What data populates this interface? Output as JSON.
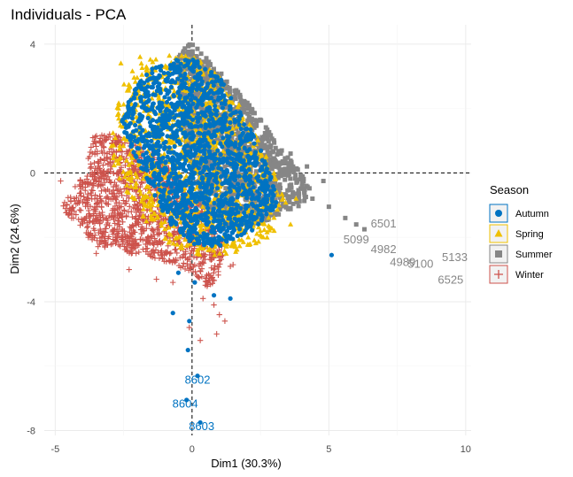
{
  "chart_data": {
    "type": "scatter",
    "title": "Individuals - PCA",
    "xlabel": "Dim1 (30.3%)",
    "ylabel": "Dim2 (24.6%)",
    "xlim": [
      -5.4,
      10.2
    ],
    "ylim": [
      -8.15,
      4.6
    ],
    "xticks": [
      -5,
      0,
      5,
      10
    ],
    "yticks": [
      4,
      0,
      -4,
      -8
    ],
    "grid": true,
    "reference_lines": {
      "x": 0,
      "y": 0,
      "style": "dashed"
    },
    "legend": {
      "title": "Season",
      "position": "right"
    },
    "series": [
      {
        "name": "Autumn",
        "color": "#0073C2",
        "shape": "circle",
        "cloud": [
          [
            -2.4,
            2.2
          ],
          [
            -1.6,
            3.2
          ],
          [
            -0.9,
            3.5
          ],
          [
            0,
            3.6
          ],
          [
            1,
            3.0
          ],
          [
            2,
            1.6
          ],
          [
            2.8,
            0.2
          ],
          [
            3.2,
            -0.9
          ],
          [
            2.4,
            -1.7
          ],
          [
            1.2,
            -2.3
          ],
          [
            0,
            -2.2
          ],
          [
            -0.8,
            -1.6
          ],
          [
            -1.4,
            -0.7
          ],
          [
            -2.0,
            0.4
          ],
          [
            -2.6,
            1.5
          ]
        ],
        "points": [
          [
            5.1,
            -2.55
          ],
          [
            -0.5,
            -3.1
          ],
          [
            0.1,
            -3.4
          ],
          [
            0.8,
            -3.8
          ],
          [
            1.4,
            -3.9
          ],
          [
            -0.7,
            -4.35
          ],
          [
            -0.1,
            -4.6
          ],
          [
            -0.15,
            -5.5
          ],
          [
            0.2,
            -6.3
          ],
          [
            -0.2,
            -7.05
          ],
          [
            0.3,
            -7.75
          ]
        ]
      },
      {
        "name": "Spring",
        "color": "#EFC000",
        "shape": "triangle",
        "cloud": [
          [
            -3.0,
            1.0
          ],
          [
            -2.6,
            2.6
          ],
          [
            -2.0,
            3.4
          ],
          [
            -1.2,
            3.6
          ],
          [
            -0.2,
            3.8
          ],
          [
            1.0,
            3.0
          ],
          [
            2.0,
            1.8
          ],
          [
            3.0,
            0.0
          ],
          [
            3.6,
            -1.0
          ],
          [
            2.8,
            -2.0
          ],
          [
            1.6,
            -2.5
          ],
          [
            0.4,
            -2.6
          ],
          [
            -0.9,
            -2.2
          ],
          [
            -2.0,
            -1.2
          ],
          [
            -2.8,
            0.0
          ]
        ],
        "points": [
          [
            -2.6,
            3.4
          ],
          [
            -1.9,
            3.6
          ],
          [
            3.8,
            -0.8
          ],
          [
            3.6,
            -1.6
          ],
          [
            3.0,
            -1.8
          ],
          [
            2.6,
            -2.0
          ],
          [
            0.2,
            0.15
          ]
        ]
      },
      {
        "name": "Summer",
        "color": "#868686",
        "shape": "square",
        "cloud": [
          [
            -0.6,
            3.6
          ],
          [
            0,
            4.1
          ],
          [
            0.6,
            3.5
          ],
          [
            1.4,
            2.8
          ],
          [
            2.4,
            1.8
          ],
          [
            3.2,
            0.8
          ],
          [
            3.8,
            0.2
          ],
          [
            4.4,
            -0.5
          ],
          [
            4.0,
            -1.0
          ],
          [
            3.0,
            -1.4
          ],
          [
            2.0,
            -1.7
          ],
          [
            1.0,
            -1.8
          ],
          [
            0.3,
            -1.0
          ],
          [
            -0.2,
            0.6
          ],
          [
            -0.5,
            2.2
          ]
        ],
        "points": [
          [
            4.4,
            -0.8
          ],
          [
            5.0,
            -1.05
          ],
          [
            5.6,
            -1.4
          ],
          [
            6.0,
            -1.6
          ],
          [
            6.3,
            -1.75
          ],
          [
            4.2,
            0.2
          ],
          [
            4.8,
            -0.25
          ],
          [
            3.6,
            0.6
          ]
        ]
      },
      {
        "name": "Winter",
        "color": "#CD534C",
        "shape": "cross",
        "cloud": [
          [
            -3.6,
            1.2
          ],
          [
            -2.8,
            1.2
          ],
          [
            -1.5,
            0.6
          ],
          [
            -0.6,
            0.0
          ],
          [
            0.8,
            -1.6
          ],
          [
            1.2,
            -2.4
          ],
          [
            1.0,
            -3.2
          ],
          [
            0.6,
            -3.6
          ],
          [
            0,
            -3.1
          ],
          [
            -0.8,
            -2.8
          ],
          [
            -1.6,
            -2.6
          ],
          [
            -3.5,
            -2.3
          ],
          [
            -4.8,
            -1.1
          ],
          [
            -3.9,
            0.1
          ]
        ],
        "points": [
          [
            -4.8,
            -0.25
          ],
          [
            -4.4,
            -1.1
          ],
          [
            -3.5,
            -2.5
          ],
          [
            -2.3,
            -3.0
          ],
          [
            -1.3,
            -3.3
          ],
          [
            -0.7,
            -3.4
          ],
          [
            0.4,
            -3.9
          ],
          [
            0.8,
            -4.1
          ],
          [
            1.0,
            -4.4
          ],
          [
            1.2,
            -4.6
          ],
          [
            0.9,
            -5.0
          ],
          [
            0.3,
            -5.2
          ],
          [
            -0.1,
            -4.8
          ],
          [
            1.4,
            -2.9
          ],
          [
            1.5,
            -2.85
          ]
        ]
      }
    ],
    "annotations": [
      {
        "text": "6501",
        "x": 7.0,
        "y": -1.55,
        "color": "#868686"
      },
      {
        "text": "5099",
        "x": 6.0,
        "y": -2.05,
        "color": "#868686"
      },
      {
        "text": "4982",
        "x": 7.0,
        "y": -2.35,
        "color": "#868686"
      },
      {
        "text": "4989",
        "x": 7.7,
        "y": -2.75,
        "color": "#868686"
      },
      {
        "text": "5100",
        "x": 8.35,
        "y": -2.8,
        "color": "#868686"
      },
      {
        "text": "5133",
        "x": 9.6,
        "y": -2.6,
        "color": "#868686"
      },
      {
        "text": "6525",
        "x": 9.45,
        "y": -3.3,
        "color": "#868686"
      },
      {
        "text": "8602",
        "x": 0.2,
        "y": -6.4,
        "color": "#0073C2"
      },
      {
        "text": "8604",
        "x": -0.25,
        "y": -7.15,
        "color": "#0073C2"
      },
      {
        "text": "8603",
        "x": 0.35,
        "y": -7.85,
        "color": "#0073C2"
      }
    ]
  }
}
